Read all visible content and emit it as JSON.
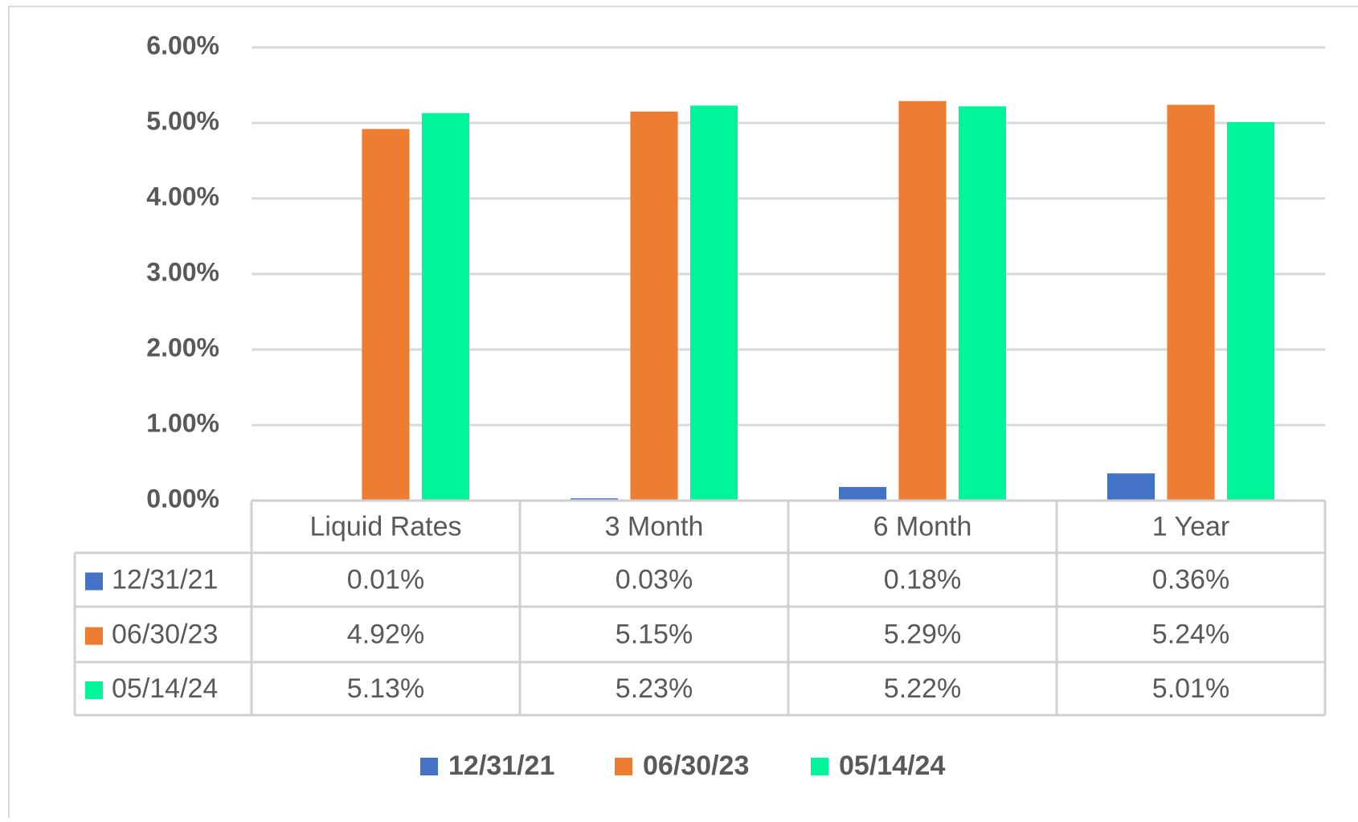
{
  "chart_data": {
    "type": "bar",
    "categories": [
      "Liquid Rates",
      "3 Month",
      "6 Month",
      "1 Year"
    ],
    "series": [
      {
        "name": "12/31/21",
        "color": "#4472c4",
        "values": [
          0.01,
          0.03,
          0.18,
          0.36
        ],
        "value_labels": [
          "0.01%",
          "0.03%",
          "0.18%",
          "0.36%"
        ]
      },
      {
        "name": "06/30/23",
        "color": "#ed7d31",
        "values": [
          4.92,
          5.15,
          5.29,
          5.24
        ],
        "value_labels": [
          "4.92%",
          "5.15%",
          "5.29%",
          "5.24%"
        ]
      },
      {
        "name": "05/14/24",
        "color": "#00f59b",
        "values": [
          5.13,
          5.23,
          5.22,
          5.01
        ],
        "value_labels": [
          "5.13%",
          "5.23%",
          "5.22%",
          "5.01%"
        ]
      }
    ],
    "ylim": [
      0,
      6
    ],
    "yticks": [
      {
        "value": 0,
        "label": "0.00%"
      },
      {
        "value": 1,
        "label": "1.00%"
      },
      {
        "value": 2,
        "label": "2.00%"
      },
      {
        "value": 3,
        "label": "3.00%"
      },
      {
        "value": 4,
        "label": "4.00%"
      },
      {
        "value": 5,
        "label": "5.00%"
      },
      {
        "value": 6,
        "label": "6.00%"
      }
    ],
    "grid": true,
    "legend": "bottom"
  }
}
